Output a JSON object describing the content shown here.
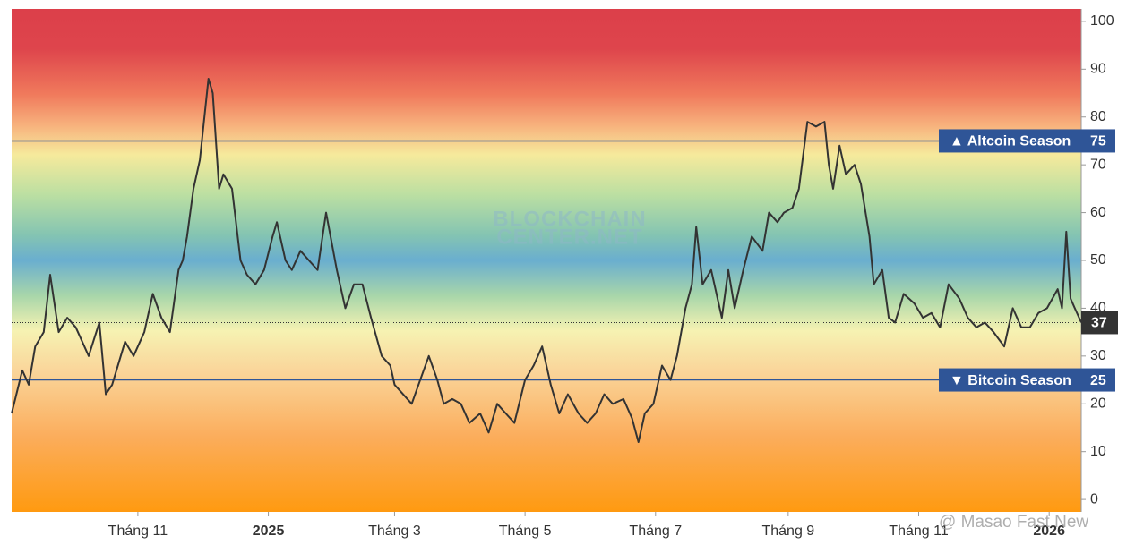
{
  "chart_data": {
    "type": "line",
    "color": "#333333",
    "x": [
      0,
      5,
      8,
      11,
      15,
      18,
      22,
      26,
      30,
      36,
      41,
      44,
      47,
      53,
      57,
      62,
      66,
      70,
      74,
      78,
      80,
      82,
      85,
      88,
      92,
      94,
      97,
      99,
      103,
      107,
      110,
      114,
      118,
      122,
      124,
      128,
      131,
      135,
      139,
      143,
      147,
      152,
      156,
      160,
      164,
      168,
      173,
      177,
      179,
      183,
      187,
      191,
      195,
      199,
      202,
      206,
      210,
      214,
      219,
      223,
      227,
      231,
      235,
      240,
      244,
      248,
      252,
      256,
      260,
      265,
      269,
      273,
      277,
      281,
      286,
      290,
      293,
      296,
      300,
      304,
      308,
      311,
      315,
      318,
      320,
      323,
      327,
      332,
      335,
      338,
      342,
      346,
      351,
      354,
      358,
      361,
      365,
      368,
      372,
      376,
      380,
      382,
      384,
      387,
      390,
      394,
      397,
      401,
      403,
      407,
      410,
      413,
      417,
      422,
      426,
      430,
      434,
      438,
      443,
      447,
      451,
      455,
      459,
      464,
      468,
      472,
      476,
      480,
      484,
      489,
      491,
      493,
      495,
      497,
      500
    ],
    "values": [
      18,
      27,
      24,
      32,
      35,
      47,
      35,
      38,
      36,
      30,
      37,
      22,
      24,
      33,
      30,
      35,
      43,
      38,
      35,
      48,
      50,
      55,
      65,
      71,
      88,
      85,
      65,
      68,
      65,
      50,
      47,
      45,
      48,
      55,
      58,
      50,
      48,
      52,
      50,
      48,
      60,
      48,
      40,
      45,
      45,
      38,
      30,
      28,
      24,
      22,
      20,
      25,
      30,
      25,
      20,
      21,
      20,
      16,
      18,
      14,
      20,
      18,
      16,
      25,
      28,
      32,
      24,
      18,
      22,
      18,
      16,
      18,
      22,
      20,
      21,
      17,
      12,
      18,
      20,
      28,
      25,
      30,
      40,
      45,
      57,
      45,
      48,
      38,
      48,
      40,
      48,
      55,
      52,
      60,
      58,
      60,
      61,
      65,
      79,
      78,
      79,
      70,
      65,
      74,
      68,
      70,
      66,
      55,
      45,
      48,
      38,
      37,
      43,
      41,
      38,
      39,
      36,
      45,
      42,
      38,
      36,
      37,
      35,
      32,
      40,
      36,
      36,
      39,
      40,
      44,
      40,
      56,
      42,
      40,
      37
    ],
    "xlim": [
      0,
      500
    ],
    "xticks": [
      {
        "value": 59,
        "label": "Tháng 11"
      },
      {
        "value": 120,
        "label": "2025"
      },
      {
        "value": 179,
        "label": "Tháng 3"
      },
      {
        "value": 240,
        "label": "Tháng 5"
      },
      {
        "value": 301,
        "label": "Tháng 7"
      },
      {
        "value": 363,
        "label": "Tháng 9"
      },
      {
        "value": 424,
        "label": "Tháng 11"
      },
      {
        "value": 485,
        "label": "2026"
      }
    ],
    "ylim": [
      -2.6,
      102.6
    ],
    "yticks": [
      0,
      10,
      20,
      30,
      40,
      50,
      60,
      70,
      80,
      90,
      100
    ],
    "reference_lines": [
      {
        "value": 75,
        "label": "▲ Altcoin Season",
        "color": "#2f5597"
      },
      {
        "value": 25,
        "label": "▼ Bitcoin Season",
        "color": "#2f5597"
      }
    ],
    "last_value_color": "#333333",
    "watermarks": [
      "BLOCKCHAIN",
      "CENTER.NET",
      "@ Masao Fast New"
    ]
  }
}
